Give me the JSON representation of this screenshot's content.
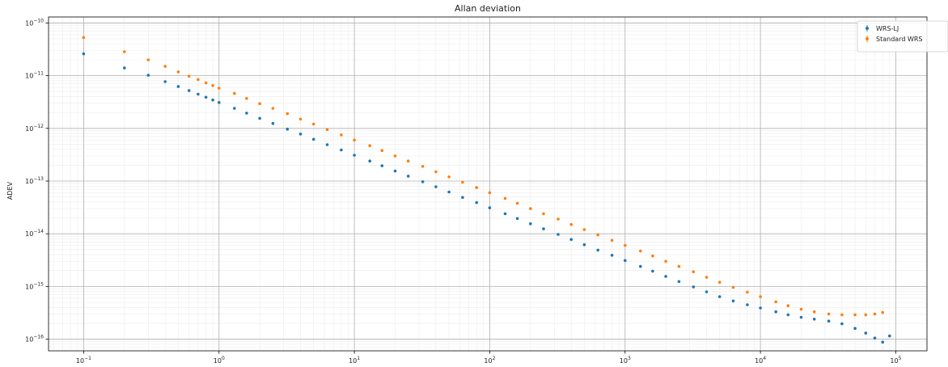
{
  "chart_data": {
    "type": "scatter",
    "title": "Allan deviation",
    "xlabel": "",
    "ylabel": "ADEV",
    "x_scale": "log",
    "y_scale": "log",
    "xlim": [
      0.055,
      170000
    ],
    "ylim": [
      6e-17,
      1.3e-10
    ],
    "grid": true,
    "legend_position": "top-right",
    "x_ticks": [
      {
        "base": "10",
        "exp": "−1",
        "value": 0.1
      },
      {
        "base": "10",
        "exp": "0",
        "value": 1
      },
      {
        "base": "10",
        "exp": "1",
        "value": 10
      },
      {
        "base": "10",
        "exp": "2",
        "value": 100
      },
      {
        "base": "10",
        "exp": "3",
        "value": 1000
      },
      {
        "base": "10",
        "exp": "4",
        "value": 10000
      },
      {
        "base": "10",
        "exp": "5",
        "value": 100000
      }
    ],
    "y_ticks": [
      {
        "base": "10",
        "exp": "−10",
        "value": 1e-10
      },
      {
        "base": "10",
        "exp": "−11",
        "value": 1e-11
      },
      {
        "base": "10",
        "exp": "−12",
        "value": 1e-12
      },
      {
        "base": "10",
        "exp": "−13",
        "value": 1e-13
      },
      {
        "base": "10",
        "exp": "−14",
        "value": 1e-14
      },
      {
        "base": "10",
        "exp": "−15",
        "value": 1e-15
      },
      {
        "base": "10",
        "exp": "−16",
        "value": 1e-16
      }
    ],
    "series": [
      {
        "name": "WRS-LJ",
        "color": "#1f77b4",
        "x": [
          0.1,
          0.2,
          0.3,
          0.4,
          0.5,
          0.6,
          0.7,
          0.8,
          0.9,
          1,
          1.3,
          1.6,
          2,
          2.5,
          3.2,
          4,
          5,
          6.3,
          8,
          10,
          13,
          16,
          20,
          25,
          32,
          40,
          50,
          63,
          80,
          100,
          130,
          160,
          200,
          250,
          320,
          400,
          500,
          630,
          800,
          1000,
          1300,
          1600,
          2000,
          2500,
          3200,
          4000,
          5000,
          6300,
          8000,
          10000,
          13000,
          16000,
          20000,
          25000,
          32000,
          40000,
          50000,
          60000,
          70000,
          80000,
          90000
        ],
        "y": [
          2.6e-11,
          1.4e-11,
          1.02e-11,
          7.7e-12,
          6.2e-12,
          5.2e-12,
          4.45e-12,
          3.9e-12,
          3.45e-12,
          3.1e-12,
          2.4e-12,
          1.95e-12,
          1.55e-12,
          1.24e-12,
          9.7e-13,
          7.8e-13,
          6.2e-13,
          4.9e-13,
          3.9e-13,
          3.1e-13,
          2.4e-13,
          1.95e-13,
          1.55e-13,
          1.24e-13,
          9.7e-14,
          7.8e-14,
          6.2e-14,
          4.9e-14,
          3.9e-14,
          3.1e-14,
          2.4e-14,
          1.95e-14,
          1.55e-14,
          1.24e-14,
          9.7e-15,
          7.8e-15,
          6.2e-15,
          4.9e-15,
          3.9e-15,
          3.1e-15,
          2.4e-15,
          1.95e-15,
          1.55e-15,
          1.24e-15,
          9.8e-16,
          7.9e-16,
          6.4e-16,
          5.3e-16,
          4.5e-16,
          3.9e-16,
          3.3e-16,
          2.9e-16,
          2.6e-16,
          2.4e-16,
          2.2e-16,
          1.95e-16,
          1.6e-16,
          1.3e-16,
          1.05e-16,
          8.8e-17,
          1.15e-16
        ]
      },
      {
        "name": "Standard WRS",
        "color": "#ff7f0e",
        "x": [
          0.1,
          0.2,
          0.3,
          0.4,
          0.5,
          0.6,
          0.7,
          0.8,
          0.9,
          1,
          1.3,
          1.6,
          2,
          2.5,
          3.2,
          4,
          5,
          6.3,
          8,
          10,
          13,
          16,
          20,
          25,
          32,
          40,
          50,
          63,
          80,
          100,
          130,
          160,
          200,
          250,
          320,
          400,
          500,
          630,
          800,
          1000,
          1300,
          1600,
          2000,
          2500,
          3200,
          4000,
          5000,
          6300,
          8000,
          10000,
          13000,
          16000,
          20000,
          25000,
          32000,
          40000,
          50000,
          60000,
          70000,
          80000
        ],
        "y": [
          5.3e-11,
          2.85e-11,
          2e-11,
          1.5e-11,
          1.18e-11,
          9.8e-12,
          8.4e-12,
          7.3e-12,
          6.5e-12,
          5.8e-12,
          4.6e-12,
          3.7e-12,
          2.95e-12,
          2.4e-12,
          1.9e-12,
          1.5e-12,
          1.2e-12,
          9.5e-13,
          7.5e-13,
          6e-13,
          4.7e-13,
          3.8e-13,
          3e-13,
          2.4e-13,
          1.9e-13,
          1.5e-13,
          1.2e-13,
          9.5e-14,
          7.5e-14,
          6e-14,
          4.7e-14,
          3.8e-14,
          3e-14,
          2.4e-14,
          1.9e-14,
          1.5e-14,
          1.2e-14,
          9.5e-15,
          7.5e-15,
          6e-15,
          4.7e-15,
          3.8e-15,
          3e-15,
          2.4e-15,
          1.9e-15,
          1.5e-15,
          1.2e-15,
          9.6e-16,
          7.8e-16,
          6.4e-16,
          5.1e-16,
          4.3e-16,
          3.7e-16,
          3.3e-16,
          3e-16,
          2.9e-16,
          2.9e-16,
          2.9e-16,
          3e-16,
          3.2e-16
        ]
      }
    ]
  }
}
